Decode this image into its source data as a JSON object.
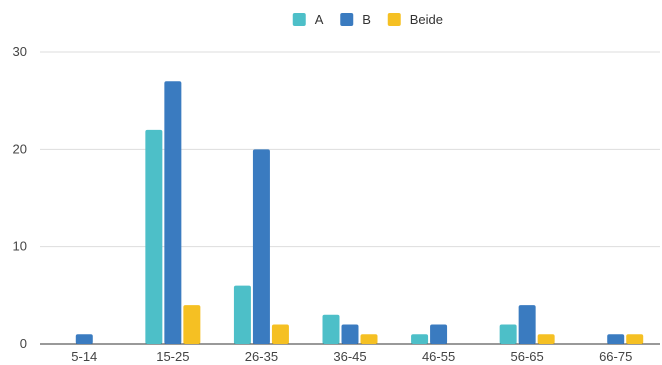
{
  "chart_data": {
    "type": "bar",
    "title": "",
    "xlabel": "",
    "ylabel": "",
    "categories": [
      "5-14",
      "15-25",
      "26-35",
      "36-45",
      "46-55",
      "56-65",
      "66-75"
    ],
    "series": [
      {
        "name": "A",
        "color": "#4dbfc8",
        "values": [
          0,
          22,
          6,
          3,
          1,
          2,
          0
        ]
      },
      {
        "name": "B",
        "color": "#3a7bc0",
        "values": [
          1,
          27,
          20,
          2,
          2,
          4,
          1
        ]
      },
      {
        "name": "Beide",
        "color": "#f5c023",
        "values": [
          0,
          4,
          2,
          1,
          0,
          1,
          1
        ]
      }
    ],
    "ylim": [
      0,
      30
    ],
    "yticks": [
      0,
      10,
      20,
      30
    ],
    "grid": true,
    "legend_position": "top-center"
  }
}
